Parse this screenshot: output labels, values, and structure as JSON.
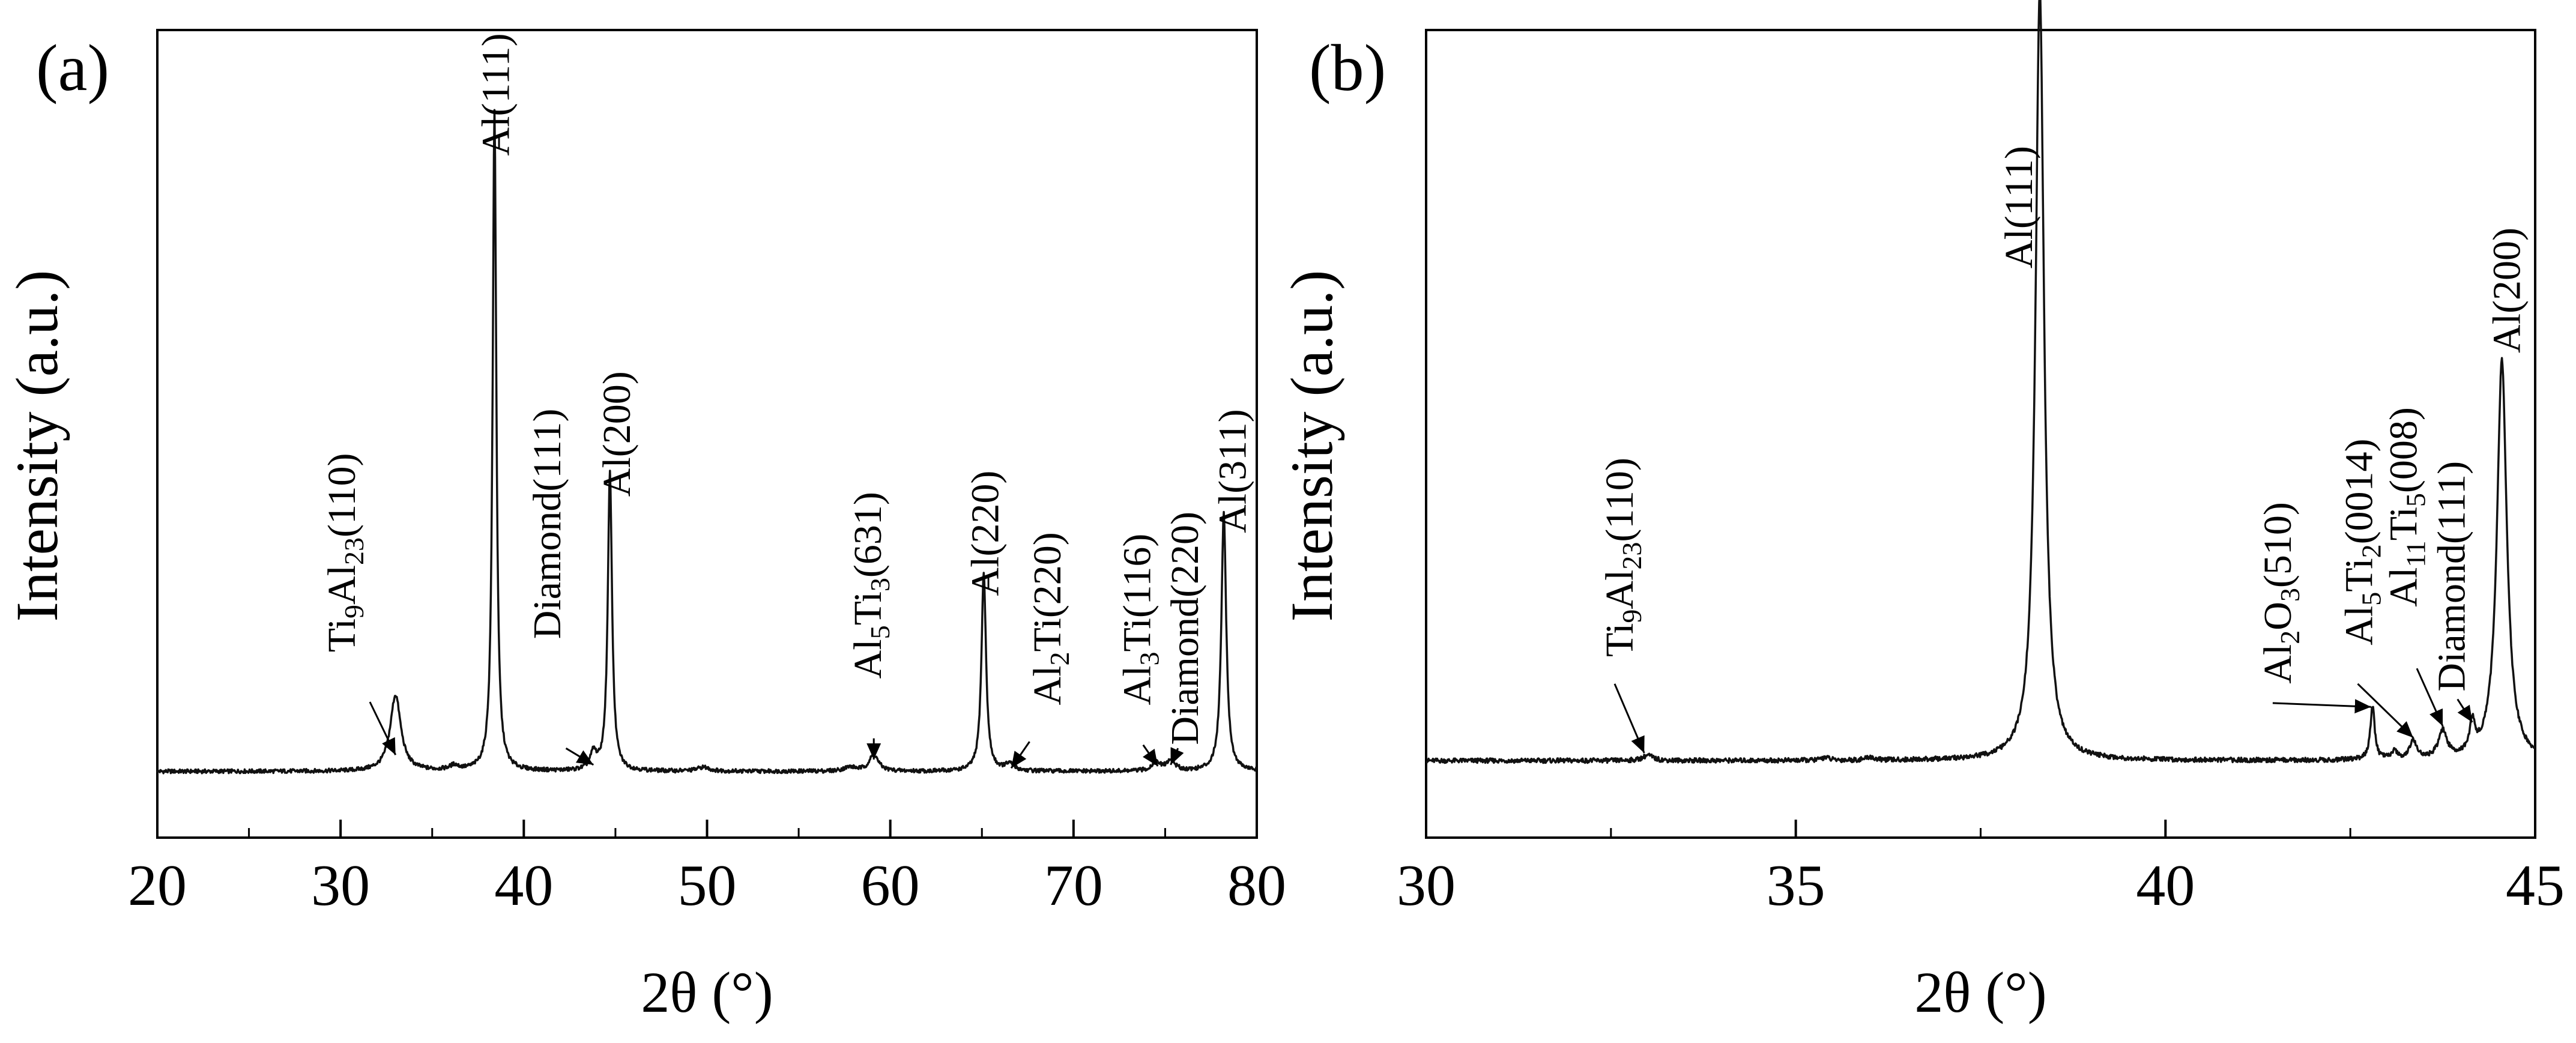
{
  "chart_data": [
    {
      "panel_label": "(a)",
      "type": "line",
      "xlabel": "2θ (°)",
      "ylabel": "Intensity (a.u.)",
      "xlim": [
        20,
        80
      ],
      "ylim": [
        0,
        1.22
      ],
      "xticks": [
        20,
        30,
        40,
        50,
        60,
        70,
        80
      ],
      "xtick_labels": [
        "20",
        "30",
        "40",
        "50",
        "60",
        "70",
        "80"
      ],
      "yticks_shown": false,
      "grid": false,
      "baseline": 0.1,
      "series": [
        {
          "peaks": [
            {
              "x": 33.0,
              "y": 0.115,
              "w": 0.35
            },
            {
              "x": 36.2,
              "y": 0.007,
              "w": 0.3
            },
            {
              "x": 38.4,
              "y": 1.0,
              "w": 0.12
            },
            {
              "x": 43.8,
              "y": 0.025,
              "w": 0.2
            },
            {
              "x": 44.7,
              "y": 0.45,
              "w": 0.14
            },
            {
              "x": 49.8,
              "y": 0.006,
              "w": 0.4
            },
            {
              "x": 57.8,
              "y": 0.006,
              "w": 0.4
            },
            {
              "x": 59.1,
              "y": 0.025,
              "w": 0.3
            },
            {
              "x": 65.1,
              "y": 0.3,
              "w": 0.15
            },
            {
              "x": 66.5,
              "y": 0.01,
              "w": 0.3
            },
            {
              "x": 74.5,
              "y": 0.012,
              "w": 0.3
            },
            {
              "x": 75.3,
              "y": 0.015,
              "w": 0.3
            },
            {
              "x": 78.2,
              "y": 0.39,
              "w": 0.16
            }
          ]
        }
      ],
      "annotations": [
        {
          "label": "Ti9Al23(110)",
          "parts": [
            [
              "Ti",
              ""
            ],
            [
              "9",
              "sub"
            ],
            [
              "Al",
              ""
            ],
            [
              "23",
              "sub"
            ],
            [
              "(110)",
              ""
            ]
          ],
          "x": 30.0,
          "y": 0.28,
          "arrow_from": [
            31.6,
            0.205
          ],
          "arrow_to": [
            33.0,
            0.125
          ]
        },
        {
          "label": "Al(111)",
          "parts": [
            [
              "Al(111)",
              ""
            ]
          ],
          "x": 38.4,
          "y": 1.03
        },
        {
          "label": "Diamond(111)",
          "parts": [
            [
              "Diamond(111)",
              ""
            ]
          ],
          "x": 41.2,
          "y": 0.3,
          "arrow_from": [
            42.3,
            0.135
          ],
          "arrow_to": [
            43.8,
            0.11
          ]
        },
        {
          "label": "Al(200)",
          "parts": [
            [
              "Al(200)",
              ""
            ]
          ],
          "x": 45.0,
          "y": 0.515
        },
        {
          "label": "Al5Ti3(631)",
          "parts": [
            [
              "Al",
              ""
            ],
            [
              "5",
              "sub"
            ],
            [
              "Ti",
              ""
            ],
            [
              "3",
              "sub"
            ],
            [
              "(631)",
              ""
            ]
          ],
          "x": 58.7,
          "y": 0.24,
          "arrow_from": [
            59.1,
            0.15
          ],
          "arrow_to": [
            59.1,
            0.118
          ]
        },
        {
          "label": "Al(220)",
          "parts": [
            [
              "Al(220)",
              ""
            ]
          ],
          "x": 65.1,
          "y": 0.365
        },
        {
          "label": "Al2Ti(220)",
          "parts": [
            [
              "Al",
              ""
            ],
            [
              "2",
              "sub"
            ],
            [
              "Ti(220)",
              ""
            ]
          ],
          "x": 68.5,
          "y": 0.2,
          "arrow_from": [
            67.6,
            0.145
          ],
          "arrow_to": [
            66.6,
            0.105
          ]
        },
        {
          "label": "Al3Ti(116)",
          "parts": [
            [
              "Al",
              ""
            ],
            [
              "3",
              "sub"
            ],
            [
              "Ti(116)",
              ""
            ]
          ],
          "x": 73.4,
          "y": 0.2,
          "arrow_from": [
            73.8,
            0.14
          ],
          "arrow_to": [
            74.6,
            0.108
          ]
        },
        {
          "label": "Diamond(220)",
          "parts": [
            [
              "Diamond(220)",
              ""
            ]
          ],
          "x": 76.0,
          "y": 0.14,
          "arrow_from": [
            75.7,
            0.135
          ],
          "arrow_to": [
            75.3,
            0.11
          ]
        },
        {
          "label": "Al(311)",
          "parts": [
            [
              "Al(311)",
              ""
            ]
          ],
          "x": 78.6,
          "y": 0.46
        }
      ]
    },
    {
      "panel_label": "(b)",
      "type": "line",
      "xlabel": "2θ (°)",
      "ylabel": "Intensity (a.u.)",
      "xlim": [
        30,
        45
      ],
      "ylim": [
        0,
        1.05
      ],
      "xticks": [
        30,
        35,
        40,
        45
      ],
      "xtick_labels": [
        "30",
        "35",
        "40",
        "45"
      ],
      "yticks_shown": false,
      "grid": false,
      "baseline": 0.1,
      "series": [
        {
          "peaks": [
            {
              "x": 33.0,
              "y": 0.007,
              "w": 0.08
            },
            {
              "x": 35.4,
              "y": 0.004,
              "w": 0.06
            },
            {
              "x": 36.0,
              "y": 0.004,
              "w": 0.06
            },
            {
              "x": 38.3,
              "y": 1.0,
              "w": 0.07
            },
            {
              "x": 42.8,
              "y": 0.07,
              "w": 0.035
            },
            {
              "x": 43.1,
              "y": 0.01,
              "w": 0.05
            },
            {
              "x": 43.35,
              "y": 0.025,
              "w": 0.05
            },
            {
              "x": 43.75,
              "y": 0.035,
              "w": 0.07
            },
            {
              "x": 44.15,
              "y": 0.04,
              "w": 0.04
            },
            {
              "x": 44.55,
              "y": 0.52,
              "w": 0.08
            }
          ]
        }
      ],
      "annotations": [
        {
          "label": "Ti9Al23(110)",
          "parts": [
            [
              "Ti",
              ""
            ],
            [
              "9",
              "sub"
            ],
            [
              "Al",
              ""
            ],
            [
              "23",
              "sub"
            ],
            [
              "(110)",
              ""
            ]
          ],
          "x": 32.6,
          "y": 0.235,
          "arrow_from": [
            32.55,
            0.2
          ],
          "arrow_to": [
            32.95,
            0.11
          ]
        },
        {
          "label": "Al(111)",
          "parts": [
            [
              "Al(111)",
              ""
            ]
          ],
          "x": 38.0,
          "y": 0.74
        },
        {
          "label": "Al2O3(510)",
          "parts": [
            [
              "Al",
              ""
            ],
            [
              "2",
              "sub"
            ],
            [
              "O",
              ""
            ],
            [
              "3",
              "sub"
            ],
            [
              "(510)",
              ""
            ]
          ],
          "x": 41.5,
          "y": 0.2,
          "arrow_from": [
            41.45,
            0.175
          ],
          "arrow_to": [
            42.78,
            0.17
          ]
        },
        {
          "label": "Al5Ti2(0014)",
          "parts": [
            [
              "Al",
              ""
            ],
            [
              "5",
              "sub"
            ],
            [
              "Ti",
              ""
            ],
            [
              "2",
              "sub"
            ],
            [
              "(0014)",
              ""
            ]
          ],
          "x": 42.6,
          "y": 0.25,
          "arrow_from": [
            42.6,
            0.2
          ],
          "arrow_to": [
            43.35,
            0.13
          ]
        },
        {
          "label": "Al11Ti5(008)",
          "parts": [
            [
              "Al",
              ""
            ],
            [
              "11",
              "sub"
            ],
            [
              "Ti",
              ""
            ],
            [
              "5",
              "sub"
            ],
            [
              "(008)",
              ""
            ]
          ],
          "x": 43.2,
          "y": 0.3,
          "arrow_from": [
            43.4,
            0.22
          ],
          "arrow_to": [
            43.75,
            0.145
          ]
        },
        {
          "label": "Diamond(111)",
          "parts": [
            [
              "Diamond(111)",
              ""
            ]
          ],
          "x": 43.85,
          "y": 0.19,
          "arrow_from": [
            43.95,
            0.18
          ],
          "arrow_to": [
            44.15,
            0.15
          ]
        },
        {
          "label": "Al(200)",
          "parts": [
            [
              "Al(200)",
              ""
            ]
          ],
          "x": 44.6,
          "y": 0.63
        }
      ]
    }
  ]
}
